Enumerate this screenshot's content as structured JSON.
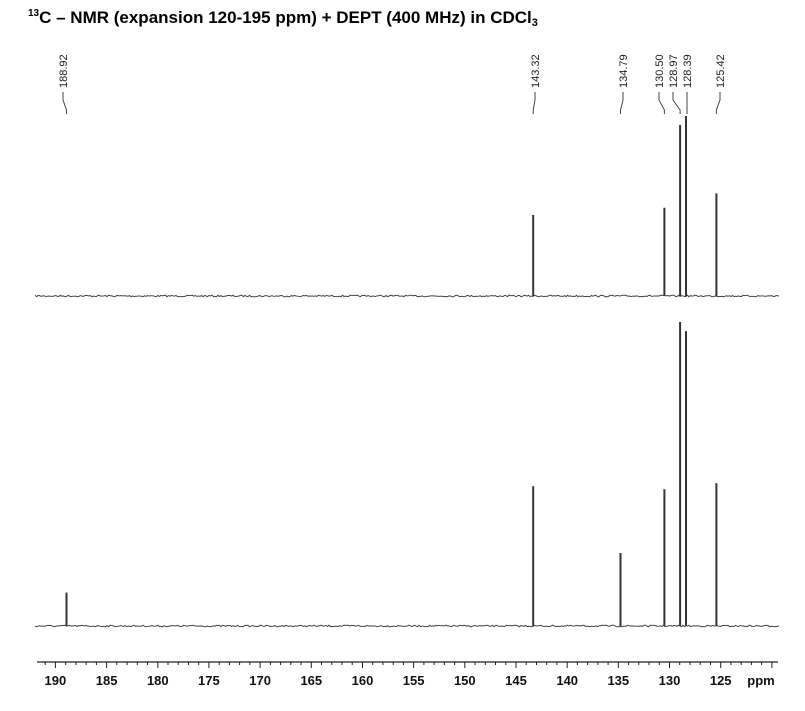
{
  "title": {
    "superscript": "13",
    "main": "C – NMR (expansion 120-195 ppm) + DEPT (400 MHz) in CDCl",
    "subscript": "3"
  },
  "chart_data": {
    "type": "line",
    "x_unit": "ppm",
    "xlim": [
      191.8,
      119.4
    ],
    "x_ticks": [
      190,
      185,
      180,
      175,
      170,
      165,
      160,
      155,
      150,
      145,
      140,
      135,
      130,
      125
    ],
    "peak_labels": [
      "188.92",
      "143.32",
      "134.79",
      "130.50",
      "128.97",
      "128.39",
      "125.42"
    ],
    "series": [
      {
        "spectrum": "DEPT",
        "peaks": [
          {
            "ppm": 143.32,
            "intensity": 0.45
          },
          {
            "ppm": 130.5,
            "intensity": 0.49
          },
          {
            "ppm": 128.97,
            "intensity": 0.95
          },
          {
            "ppm": 128.39,
            "intensity": 1.0
          },
          {
            "ppm": 125.42,
            "intensity": 0.57
          }
        ]
      },
      {
        "spectrum": "13C NMR",
        "peaks": [
          {
            "ppm": 188.92,
            "intensity": 0.11
          },
          {
            "ppm": 143.32,
            "intensity": 0.46
          },
          {
            "ppm": 134.79,
            "intensity": 0.24
          },
          {
            "ppm": 130.5,
            "intensity": 0.45
          },
          {
            "ppm": 128.97,
            "intensity": 1.0
          },
          {
            "ppm": 128.39,
            "intensity": 0.97
          },
          {
            "ppm": 125.42,
            "intensity": 0.47
          }
        ]
      }
    ],
    "grid": false,
    "legend": "none"
  }
}
